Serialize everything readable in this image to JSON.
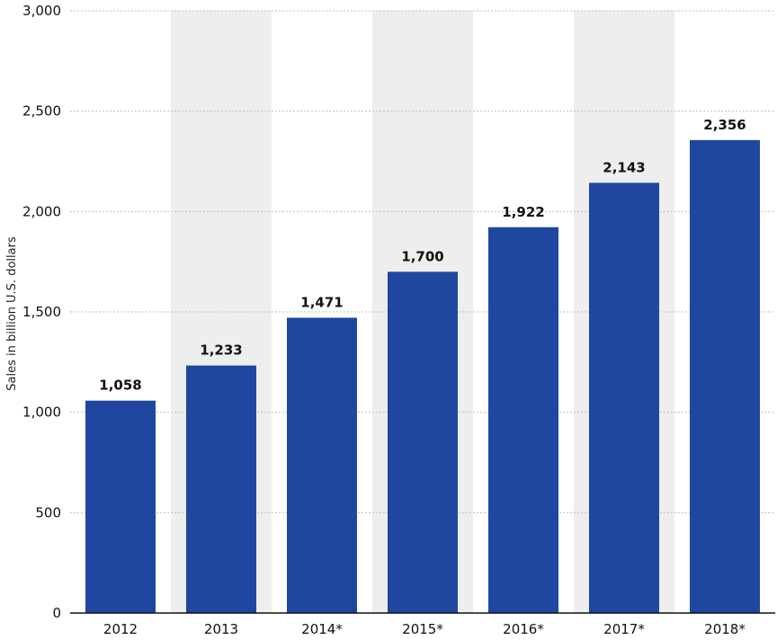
{
  "chart_data": {
    "type": "bar",
    "categories": [
      "2012",
      "2013",
      "2014*",
      "2015*",
      "2016*",
      "2017*",
      "2018*"
    ],
    "values": [
      1058,
      1233,
      1471,
      1700,
      1922,
      2143,
      2356
    ],
    "value_labels": [
      "1,058",
      "1,233",
      "1,471",
      "1,700",
      "1,922",
      "2,143",
      "2,356"
    ],
    "ylabel": "Sales in billion U.S. dollars",
    "xlabel": "",
    "ylim": [
      0,
      3000
    ],
    "yticks": [
      0,
      500,
      1000,
      1500,
      2000,
      2500,
      3000
    ],
    "ytick_labels": [
      "0",
      "500",
      "1,000",
      "1,500",
      "2,000",
      "2,500",
      "3,000"
    ],
    "grid": true,
    "bar_color": "#1f47a0",
    "band_color": "#eeeeee"
  }
}
